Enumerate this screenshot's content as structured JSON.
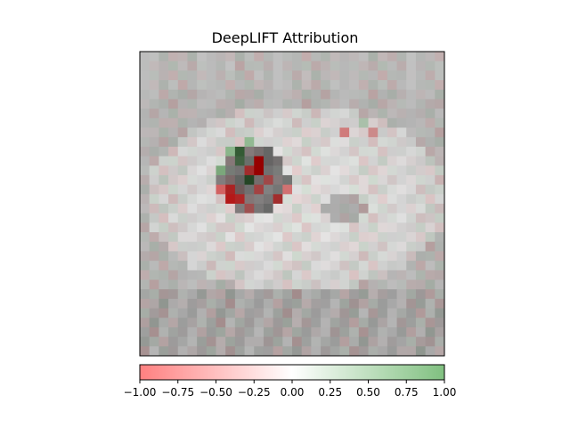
{
  "chart_data": {
    "type": "heatmap",
    "title": "DeepLIFT Attribution",
    "xlabel": "",
    "ylabel": "",
    "image_axes": {
      "xticks": false,
      "yticks": false
    },
    "grid": {
      "rows": 32,
      "cols": 32
    },
    "base_image": {
      "description_type": "grayscale",
      "background_gray": 0.72
    },
    "attribution_overlay": {
      "colormap": [
        "#ff8080",
        "#ffffff",
        "#80c080"
      ],
      "vmin": -1.0,
      "vmax": 1.0,
      "strong_cells": [
        {
          "row": 11,
          "col": 12,
          "value": -0.95
        },
        {
          "row": 12,
          "col": 12,
          "value": -0.95
        },
        {
          "row": 12,
          "col": 11,
          "value": -0.6
        },
        {
          "row": 10,
          "col": 10,
          "value": 0.85
        },
        {
          "row": 11,
          "col": 10,
          "value": 0.7
        },
        {
          "row": 13,
          "col": 11,
          "value": 0.9
        },
        {
          "row": 10,
          "col": 9,
          "value": 0.55
        },
        {
          "row": 12,
          "col": 8,
          "value": 0.6
        },
        {
          "row": 14,
          "col": 9,
          "value": -0.7
        },
        {
          "row": 15,
          "col": 9,
          "value": -0.8
        },
        {
          "row": 14,
          "col": 8,
          "value": -0.6
        },
        {
          "row": 15,
          "col": 10,
          "value": -0.7
        },
        {
          "row": 14,
          "col": 12,
          "value": -0.5
        },
        {
          "row": 15,
          "col": 14,
          "value": -0.6
        },
        {
          "row": 14,
          "col": 15,
          "value": -0.5
        },
        {
          "row": 13,
          "col": 13,
          "value": -0.45
        },
        {
          "row": 16,
          "col": 11,
          "value": -0.4
        },
        {
          "row": 9,
          "col": 11,
          "value": 0.5
        },
        {
          "row": 8,
          "col": 21,
          "value": -0.45
        },
        {
          "row": 8,
          "col": 24,
          "value": -0.35
        },
        {
          "row": 7,
          "col": 23,
          "value": 0.3
        }
      ]
    },
    "colorbar": {
      "orientation": "horizontal",
      "range": [
        -1.0,
        1.0
      ],
      "ticks": [
        -1.0,
        -0.75,
        -0.5,
        -0.25,
        0.0,
        0.25,
        0.5,
        0.75,
        1.0
      ],
      "tick_labels": [
        "−1.00",
        "−0.75",
        "−0.50",
        "−0.25",
        "0.00",
        "0.25",
        "0.50",
        "0.75",
        "1.00"
      ]
    }
  }
}
